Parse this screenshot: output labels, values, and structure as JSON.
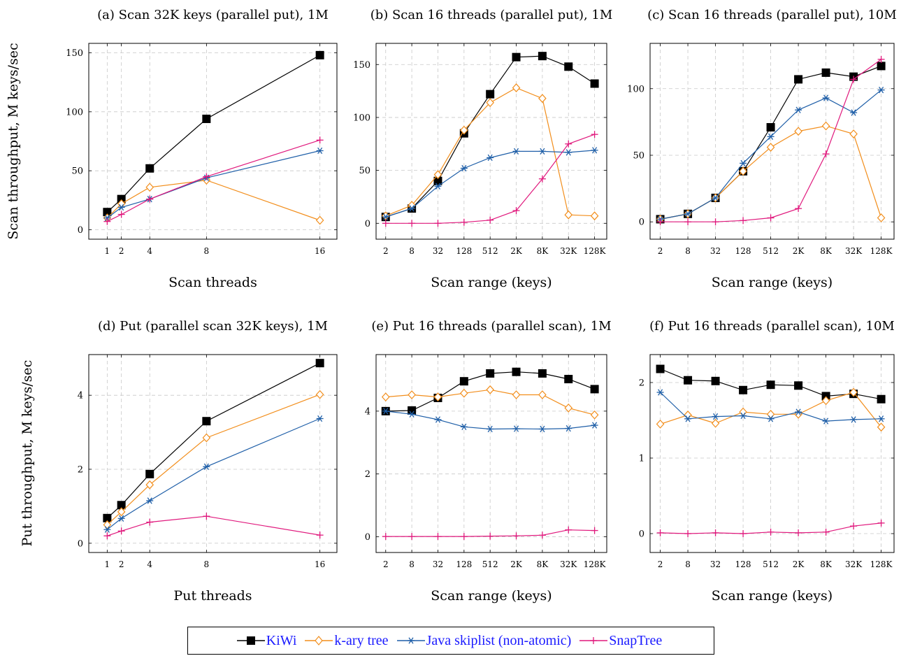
{
  "ylabels": {
    "top": "Scan throughput, M keys/sec",
    "bottom": "Put throughput, M keys/sec"
  },
  "legend": [
    {
      "name": "KiWi",
      "color": "#000000",
      "marker": "square"
    },
    {
      "name": "k-ary tree",
      "color": "#f28e1c",
      "marker": "diamond"
    },
    {
      "name": "Java skiplist (non-atomic)",
      "color": "#1f5fa8",
      "marker": "asterisk"
    },
    {
      "name": "SnapTree",
      "color": "#e0197d",
      "marker": "plus"
    }
  ],
  "chart_data": [
    {
      "type": "line",
      "title": "(a) Scan 32K keys (parallel put), 1M",
      "xlabel": "Scan threads",
      "ylabel": "Scan throughput, M keys/sec",
      "x": [
        1,
        2,
        4,
        8,
        16
      ],
      "x_ticks": [
        "1",
        "2",
        "4",
        "8",
        "16"
      ],
      "xlim": [
        -0.3,
        17.2
      ],
      "ylim": [
        -8,
        158
      ],
      "y_ticks": [
        0,
        50,
        100,
        150
      ],
      "grid": true,
      "series": [
        {
          "name": "KiWi",
          "values": [
            15,
            26,
            52,
            94,
            148
          ]
        },
        {
          "name": "k-ary tree",
          "values": [
            10,
            22,
            36,
            42,
            8
          ]
        },
        {
          "name": "Java skiplist (non-atomic)",
          "values": [
            10,
            19,
            26,
            44,
            67
          ]
        },
        {
          "name": "SnapTree",
          "values": [
            7,
            13,
            26,
            45,
            76
          ]
        }
      ]
    },
    {
      "type": "line",
      "title": "(b) Scan 16 threads (parallel put), 1M",
      "xlabel": "Scan range (keys)",
      "ylabel": "",
      "x": [
        2,
        8,
        32,
        128,
        512,
        2048,
        8192,
        32768,
        131072
      ],
      "x_ticks": [
        "2",
        "8",
        "32",
        "128",
        "512",
        "2K",
        "8K",
        "32K",
        "128K"
      ],
      "xscale": "log",
      "xlim": [
        1.2,
        250000
      ],
      "ylim": [
        -15,
        170
      ],
      "y_ticks": [
        0,
        50,
        100,
        150
      ],
      "grid": true,
      "series": [
        {
          "name": "KiWi",
          "values": [
            6,
            14,
            40,
            85,
            122,
            157,
            158,
            148,
            132
          ]
        },
        {
          "name": "k-ary tree",
          "values": [
            7,
            17,
            46,
            88,
            114,
            128,
            118,
            8,
            7
          ]
        },
        {
          "name": "Java skiplist (non-atomic)",
          "values": [
            6,
            14,
            35,
            52,
            62,
            68,
            68,
            67,
            69
          ]
        },
        {
          "name": "SnapTree",
          "values": [
            0,
            0,
            0,
            1,
            3,
            12,
            42,
            75,
            84
          ]
        }
      ]
    },
    {
      "type": "line",
      "title": "(c) Scan 16 threads (parallel put), 10M",
      "xlabel": "Scan range (keys)",
      "ylabel": "",
      "x": [
        2,
        8,
        32,
        128,
        512,
        2048,
        8192,
        32768,
        131072
      ],
      "x_ticks": [
        "2",
        "8",
        "32",
        "128",
        "512",
        "2K",
        "8K",
        "32K",
        "128K"
      ],
      "xscale": "log",
      "xlim": [
        1.2,
        250000
      ],
      "ylim": [
        -13,
        134
      ],
      "y_ticks": [
        0,
        50,
        100
      ],
      "grid": true,
      "series": [
        {
          "name": "KiWi",
          "values": [
            2,
            6,
            18,
            38,
            71,
            107,
            112,
            109,
            117
          ]
        },
        {
          "name": "k-ary tree",
          "values": [
            2,
            6,
            18,
            38,
            56,
            68,
            72,
            66,
            3
          ]
        },
        {
          "name": "Java skiplist (non-atomic)",
          "values": [
            2,
            6,
            18,
            44,
            64,
            84,
            93,
            82,
            99
          ]
        },
        {
          "name": "SnapTree",
          "values": [
            0,
            0,
            0,
            1,
            3,
            10,
            51,
            107,
            122
          ]
        }
      ]
    },
    {
      "type": "line",
      "title": "(d) Put (parallel scan 32K keys), 1M",
      "xlabel": "Put threads",
      "ylabel": "Put throughput, M keys/sec",
      "x": [
        1,
        2,
        4,
        8,
        16
      ],
      "x_ticks": [
        "1",
        "2",
        "4",
        "8",
        "16"
      ],
      "xlim": [
        -0.3,
        17.2
      ],
      "ylim": [
        -0.25,
        5.1
      ],
      "y_ticks": [
        0,
        2,
        4
      ],
      "grid": true,
      "series": [
        {
          "name": "KiWi",
          "values": [
            0.68,
            1.03,
            1.87,
            3.3,
            4.87
          ]
        },
        {
          "name": "k-ary tree",
          "values": [
            0.5,
            0.85,
            1.58,
            2.85,
            4.02
          ]
        },
        {
          "name": "Java skiplist (non-atomic)",
          "values": [
            0.37,
            0.67,
            1.15,
            2.07,
            3.37
          ]
        },
        {
          "name": "SnapTree",
          "values": [
            0.2,
            0.33,
            0.57,
            0.73,
            0.22
          ]
        }
      ]
    },
    {
      "type": "line",
      "title": "(e) Put 16 threads (parallel scan), 1M",
      "xlabel": "Scan range (keys)",
      "ylabel": "",
      "x": [
        2,
        8,
        32,
        128,
        512,
        2048,
        8192,
        32768,
        131072
      ],
      "x_ticks": [
        "2",
        "8",
        "32",
        "128",
        "512",
        "2K",
        "8K",
        "32K",
        "128K"
      ],
      "xscale": "log",
      "xlim": [
        1.2,
        250000
      ],
      "ylim": [
        -0.5,
        5.8
      ],
      "y_ticks": [
        0,
        2,
        4
      ],
      "grid": true,
      "series": [
        {
          "name": "KiWi",
          "values": [
            4.0,
            4.02,
            4.42,
            4.95,
            5.2,
            5.25,
            5.2,
            5.02,
            4.7
          ]
        },
        {
          "name": "k-ary tree",
          "values": [
            4.45,
            4.52,
            4.45,
            4.57,
            4.68,
            4.52,
            4.52,
            4.1,
            3.88
          ]
        },
        {
          "name": "Java skiplist (non-atomic)",
          "values": [
            4.0,
            3.9,
            3.73,
            3.5,
            3.43,
            3.44,
            3.43,
            3.45,
            3.55
          ]
        },
        {
          "name": "SnapTree",
          "values": [
            0.01,
            0.01,
            0.01,
            0.01,
            0.02,
            0.03,
            0.05,
            0.22,
            0.2
          ]
        }
      ]
    },
    {
      "type": "line",
      "title": "(f) Put 16 threads (parallel scan), 10M",
      "xlabel": "Scan range (keys)",
      "ylabel": "",
      "x": [
        2,
        8,
        32,
        128,
        512,
        2048,
        8192,
        32768,
        131072
      ],
      "x_ticks": [
        "2",
        "8",
        "32",
        "128",
        "512",
        "2K",
        "8K",
        "32K",
        "128K"
      ],
      "xscale": "log",
      "xlim": [
        1.2,
        250000
      ],
      "ylim": [
        -0.25,
        2.37
      ],
      "y_ticks": [
        0,
        1,
        2
      ],
      "grid": true,
      "series": [
        {
          "name": "KiWi",
          "values": [
            2.18,
            2.03,
            2.02,
            1.9,
            1.97,
            1.96,
            1.82,
            1.85,
            1.78
          ]
        },
        {
          "name": "k-ary tree",
          "values": [
            1.45,
            1.57,
            1.46,
            1.61,
            1.58,
            1.58,
            1.76,
            1.87,
            1.41
          ]
        },
        {
          "name": "Java skiplist (non-atomic)",
          "values": [
            1.87,
            1.52,
            1.55,
            1.56,
            1.52,
            1.61,
            1.49,
            1.51,
            1.52
          ]
        },
        {
          "name": "SnapTree",
          "values": [
            0.01,
            0.0,
            0.01,
            0.0,
            0.02,
            0.01,
            0.02,
            0.1,
            0.14
          ]
        }
      ]
    }
  ]
}
